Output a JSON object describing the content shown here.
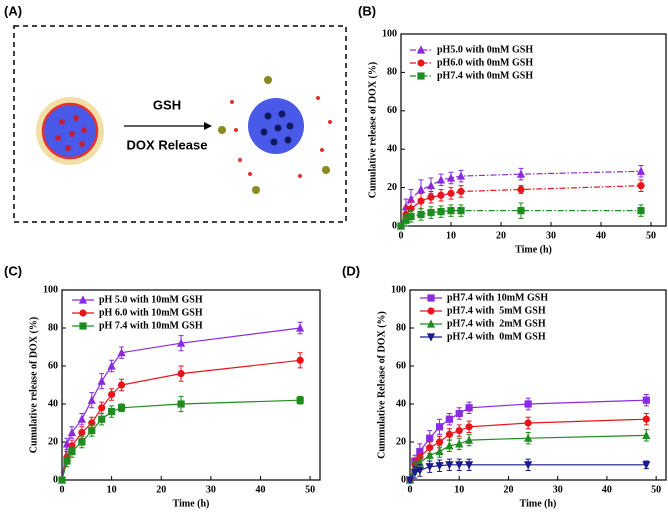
{
  "diagram": {
    "panel_label": "(A)",
    "top_text": "GSH",
    "bottom_text": "DOX Release"
  },
  "chart_data": [
    {
      "type": "line",
      "panel_label": "(B)",
      "xlabel": "Time (h)",
      "ylabel": "Cumulative release of DOX (%)",
      "x": [
        0,
        1,
        2,
        4,
        6,
        8,
        10,
        12,
        24,
        48
      ],
      "xlim": [
        0,
        53
      ],
      "ylim": [
        0,
        100
      ],
      "xticks": [
        0,
        10,
        20,
        30,
        40,
        50
      ],
      "yticks": [
        0,
        20,
        40,
        60,
        80,
        100
      ],
      "line_style": "dashdot",
      "series": [
        {
          "name": "pH5.0 with 0mM GSH",
          "color": "#8a2be2",
          "marker": "triangle",
          "values": [
            0,
            10,
            14,
            19,
            21,
            24,
            25,
            26,
            27,
            28.5
          ],
          "errors": [
            1,
            4,
            5,
            5,
            4,
            3,
            3,
            3,
            3,
            3
          ]
        },
        {
          "name": "pH6.0 with 0mM GSH",
          "color": "#e8141c",
          "marker": "circle",
          "values": [
            0,
            6,
            9,
            13,
            15,
            16,
            17,
            18,
            19,
            21
          ],
          "errors": [
            1,
            4,
            4,
            4,
            3,
            3,
            3,
            3,
            2,
            3
          ]
        },
        {
          "name": "pH7.4 with 0mM GSH",
          "color": "#1e8c1e",
          "marker": "square",
          "values": [
            0,
            3,
            5,
            6,
            7,
            7.5,
            8,
            8,
            8,
            8
          ],
          "errors": [
            1,
            3,
            3,
            3,
            3,
            3,
            3,
            3,
            4,
            3
          ]
        }
      ]
    },
    {
      "type": "line",
      "panel_label": "(C)",
      "xlabel": "Time (h)",
      "ylabel": "Cumulative release of DOX (%)",
      "x": [
        0,
        1,
        2,
        4,
        6,
        8,
        10,
        12,
        24,
        48
      ],
      "xlim": [
        0,
        52
      ],
      "ylim": [
        0,
        100
      ],
      "xticks": [
        0,
        10,
        20,
        30,
        40,
        50
      ],
      "yticks": [
        0,
        20,
        40,
        60,
        80,
        100
      ],
      "line_style": "solid",
      "series": [
        {
          "name": "pH 5.0 with 10mM GSH",
          "color": "#8a2be2",
          "marker": "triangle",
          "values": [
            0,
            19,
            25,
            32,
            42,
            52,
            60,
            67,
            72,
            80
          ],
          "errors": [
            1,
            3,
            3,
            3,
            4,
            4,
            3,
            3,
            4,
            3
          ]
        },
        {
          "name": "pH 6.0 with 10mM GSH",
          "color": "#e8141c",
          "marker": "circle",
          "values": [
            0,
            12,
            18,
            25,
            30,
            38,
            45,
            50,
            56,
            63
          ],
          "errors": [
            1,
            3,
            3,
            3,
            3,
            3,
            3,
            3,
            4,
            4
          ]
        },
        {
          "name": "pH 7.4 with 10mM GSH",
          "color": "#1e8c1e",
          "marker": "square",
          "values": [
            0,
            10,
            15,
            20,
            26,
            32,
            36,
            38,
            40,
            42
          ],
          "errors": [
            1,
            3,
            3,
            3,
            3,
            3,
            3,
            2,
            4,
            2
          ]
        }
      ]
    },
    {
      "type": "line",
      "panel_label": "(D)",
      "xlabel": "Time (h)",
      "ylabel": "Cummulative Release of DOX (%)",
      "x": [
        0,
        1,
        2,
        4,
        6,
        8,
        10,
        12,
        24,
        48
      ],
      "xlim": [
        0,
        52
      ],
      "ylim": [
        0,
        100
      ],
      "xticks": [
        0,
        10,
        20,
        30,
        40,
        50
      ],
      "yticks": [
        0,
        20,
        40,
        60,
        80,
        100
      ],
      "line_style": "solid",
      "series": [
        {
          "name": "pH7.4 with 10mM GSH",
          "color": "#8a2be2",
          "marker": "square",
          "values": [
            0,
            10,
            15,
            22,
            28,
            32,
            35,
            38,
            40,
            42
          ],
          "errors": [
            1,
            3,
            4,
            4,
            4,
            3,
            3,
            3,
            3,
            3
          ]
        },
        {
          "name": "pH7.4 with  5mM GSH",
          "color": "#e8141c",
          "marker": "circle",
          "values": [
            0,
            8,
            12,
            17,
            20,
            24,
            26,
            28,
            30,
            32
          ],
          "errors": [
            1,
            3,
            3,
            3,
            3,
            3,
            3,
            3,
            3,
            3
          ]
        },
        {
          "name": "pH7.4 with  2mM GSH",
          "color": "#1e8c1e",
          "marker": "triangle",
          "values": [
            0,
            6,
            9,
            13,
            15,
            18,
            19,
            21,
            22,
            23.5
          ],
          "errors": [
            1,
            3,
            3,
            3,
            3,
            3,
            3,
            3,
            3,
            3
          ]
        },
        {
          "name": "pH7.4 with  0mM GSH",
          "color": "#1a1a8c",
          "marker": "down-triangle",
          "values": [
            0,
            4,
            5,
            7,
            7.5,
            8,
            8,
            8,
            8,
            8
          ],
          "errors": [
            1,
            3,
            3,
            3,
            3,
            3,
            3,
            3,
            3,
            2
          ]
        }
      ]
    }
  ]
}
